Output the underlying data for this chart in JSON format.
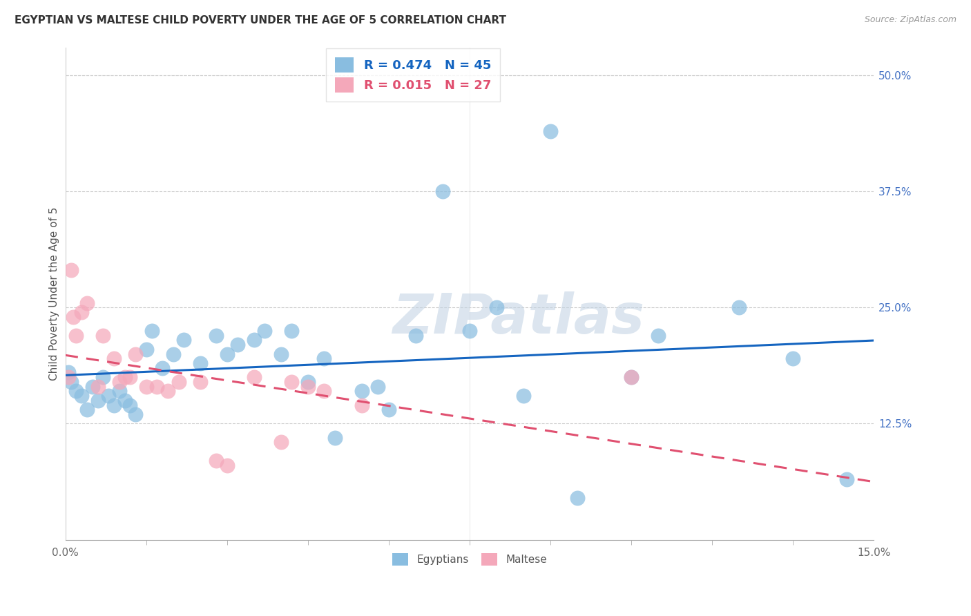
{
  "title": "EGYPTIAN VS MALTESE CHILD POVERTY UNDER THE AGE OF 5 CORRELATION CHART",
  "source": "Source: ZipAtlas.com",
  "ylabel": "Child Poverty Under the Age of 5",
  "ytick_labels": [
    "12.5%",
    "25.0%",
    "37.5%",
    "50.0%"
  ],
  "ytick_values": [
    12.5,
    25.0,
    37.5,
    50.0
  ],
  "xlim": [
    0,
    15
  ],
  "ylim": [
    0,
    53
  ],
  "egyptians_R": 0.474,
  "egyptians_N": 45,
  "maltese_R": 0.015,
  "maltese_N": 27,
  "egyptian_color": "#89bde0",
  "maltese_color": "#f4a8ba",
  "trendline_egyptian_color": "#1565c0",
  "trendline_maltese_color": "#e05070",
  "watermark": "ZIPatlas",
  "egyptians_x": [
    0.05,
    0.1,
    0.2,
    0.3,
    0.4,
    0.5,
    0.6,
    0.7,
    0.8,
    0.9,
    1.0,
    1.1,
    1.2,
    1.3,
    1.5,
    1.6,
    1.8,
    2.0,
    2.2,
    2.5,
    2.8,
    3.0,
    3.2,
    3.5,
    3.7,
    4.0,
    4.2,
    4.5,
    4.8,
    5.0,
    5.5,
    5.8,
    6.0,
    6.5,
    7.0,
    7.5,
    8.0,
    8.5,
    9.0,
    9.5,
    10.5,
    11.0,
    12.5,
    13.5,
    14.5
  ],
  "egyptians_y": [
    18.0,
    17.0,
    16.0,
    15.5,
    14.0,
    16.5,
    15.0,
    17.5,
    15.5,
    14.5,
    16.0,
    15.0,
    14.5,
    13.5,
    20.5,
    22.5,
    18.5,
    20.0,
    21.5,
    19.0,
    22.0,
    20.0,
    21.0,
    21.5,
    22.5,
    20.0,
    22.5,
    17.0,
    19.5,
    11.0,
    16.0,
    16.5,
    14.0,
    22.0,
    37.5,
    22.5,
    25.0,
    15.5,
    44.0,
    4.5,
    17.5,
    22.0,
    25.0,
    19.5,
    6.5
  ],
  "maltese_x": [
    0.05,
    0.1,
    0.15,
    0.2,
    0.3,
    0.4,
    0.6,
    0.7,
    0.9,
    1.0,
    1.1,
    1.2,
    1.3,
    1.5,
    1.7,
    1.9,
    2.1,
    2.5,
    2.8,
    3.0,
    3.5,
    4.0,
    4.2,
    4.5,
    4.8,
    5.5,
    10.5
  ],
  "maltese_y": [
    17.5,
    29.0,
    24.0,
    22.0,
    24.5,
    25.5,
    16.5,
    22.0,
    19.5,
    17.0,
    17.5,
    17.5,
    20.0,
    16.5,
    16.5,
    16.0,
    17.0,
    17.0,
    8.5,
    8.0,
    17.5,
    10.5,
    17.0,
    16.5,
    16.0,
    14.5,
    17.5
  ],
  "xtick_only_ends": true,
  "xtick_minor_positions": [
    1.5,
    3.0,
    4.5,
    6.0,
    7.5,
    9.0,
    10.5,
    12.0,
    13.5
  ]
}
